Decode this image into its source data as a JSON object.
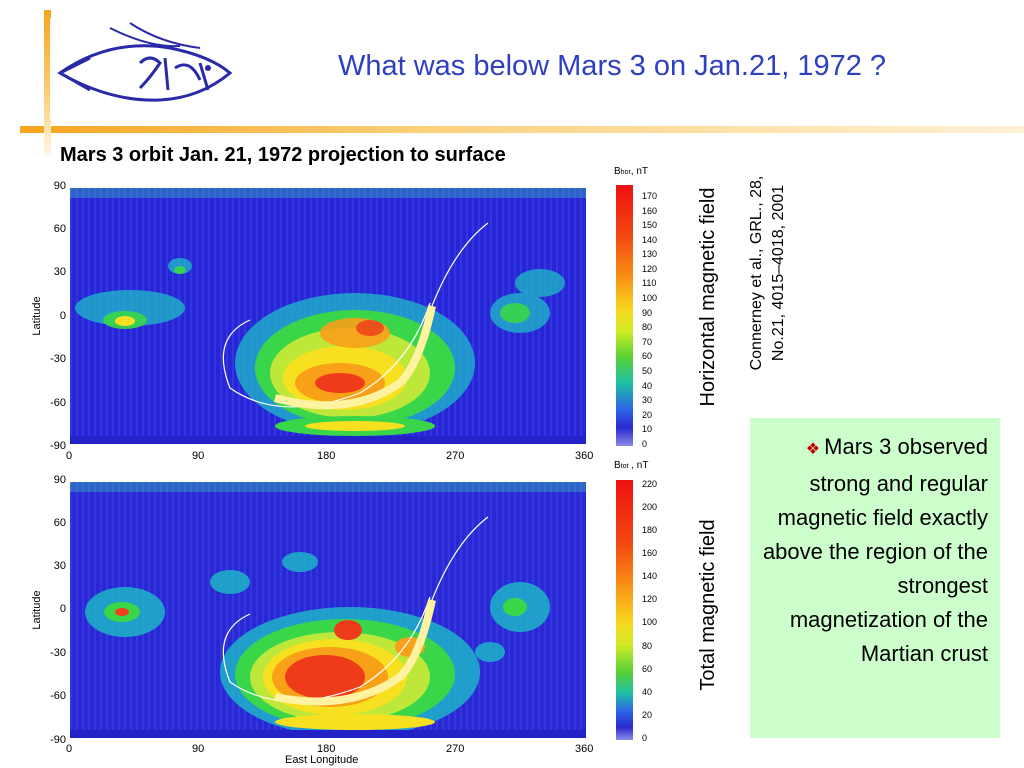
{
  "slide": {
    "title": "What was below Mars 3 on Jan.21, 1972 ?",
    "subtitle": "Mars 3 orbit Jan. 21, 1972 projection to surface",
    "logo_icon": "iki-fish-logo",
    "accent_color": "#f7a41d",
    "title_color": "#2f3fc2"
  },
  "panels": [
    {
      "side_label": "Horizontal magnetic field",
      "colorbar": {
        "title_base": "B",
        "title_sub": "hor",
        "title_unit": ", nT",
        "ticks": [
          "170",
          "160",
          "150",
          "140",
          "130",
          "120",
          "110",
          "100",
          "90",
          "80",
          "70",
          "60",
          "50",
          "40",
          "30",
          "20",
          "10",
          "0"
        ]
      },
      "y_ticks": [
        "90",
        "60",
        "30",
        "0",
        "-30",
        "-60",
        "-90"
      ],
      "x_ticks": [
        "0",
        "90",
        "180",
        "270",
        "360"
      ],
      "y_axis_title": "Latitude",
      "x_axis_title": ""
    },
    {
      "side_label": "Total magnetic field",
      "colorbar": {
        "title_base": "B",
        "title_sub": "tot",
        "title_unit": " , nT",
        "ticks": [
          "220",
          "200",
          "180",
          "160",
          "140",
          "120",
          "100",
          "80",
          "60",
          "40",
          "20",
          "0"
        ]
      },
      "y_ticks": [
        "90",
        "60",
        "30",
        "0",
        "-30",
        "-60",
        "-90"
      ],
      "x_ticks": [
        "0",
        "90",
        "180",
        "270",
        "360"
      ],
      "y_axis_title": "Latitude",
      "x_axis_title": "East Longitude"
    }
  ],
  "citation": {
    "line1": "Connerney et al., GRL., 28,",
    "line2": "No.21, 4015–4018, 2001"
  },
  "note": {
    "bullet_icon": "diamond-bullet-icon",
    "text": "Mars 3 observed strong and regular magnetic field exactly above the region of the strongest magnetization of the Martian crust"
  }
}
